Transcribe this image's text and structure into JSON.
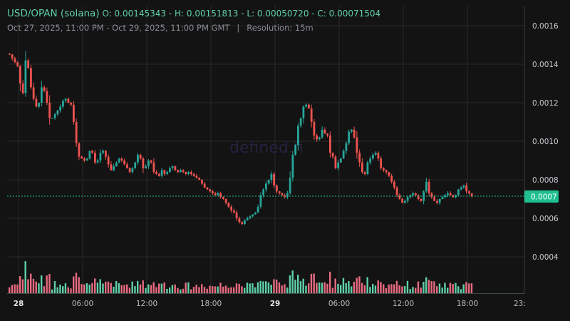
{
  "header": {
    "symbol": "USD/OPAN (solana)",
    "ohlc": "O: 0.00145343 - H: 0.00151813 - L: 0.00050720 - C: 0.00071504",
    "range": "Oct 27, 2025, 11:00 PM - Oct 29, 2025, 11:00 PM GMT",
    "separator": "|",
    "resolution": "Resolution: 15m"
  },
  "watermark": "defined.fi",
  "colors": {
    "background": "#131313",
    "up": "#26a69a",
    "down": "#ef5350",
    "volume_up": "#5fd0a8",
    "volume_down": "#e86b80",
    "grid": "#2a2a2a",
    "price_line": "#1fbf90",
    "price_tag": "#1fbf90"
  },
  "price_tag": "0.0007",
  "chart_data": {
    "type": "candlestick",
    "title": "USD/OPAN (solana)",
    "resolution": "15m",
    "open": 0.00145343,
    "high": 0.00151813,
    "low": 0.0005072,
    "close": 0.00071504,
    "y_ticks": [
      "0.0016",
      "0.0014",
      "0.0012",
      "0.0010",
      "0.0008",
      "0.0006",
      "0.0004"
    ],
    "x_ticks": [
      {
        "label": "28",
        "bold": true
      },
      {
        "label": "06:00",
        "bold": false
      },
      {
        "label": "12:00",
        "bold": false
      },
      {
        "label": "18:00",
        "bold": false
      },
      {
        "label": "29",
        "bold": true
      },
      {
        "label": "06:00",
        "bold": false
      },
      {
        "label": "12:00",
        "bold": false
      },
      {
        "label": "18:00",
        "bold": false
      },
      {
        "label": "23:",
        "bold": false
      }
    ],
    "ylim": [
      0.0003,
      0.00165
    ],
    "current_price": 0.00071504,
    "close_series_approx": [
      0.00145,
      0.00143,
      0.00141,
      0.00139,
      0.0013,
      0.00125,
      0.00142,
      0.00138,
      0.00128,
      0.00122,
      0.00118,
      0.0012,
      0.00128,
      0.00126,
      0.0012,
      0.00112,
      0.00112,
      0.00114,
      0.00116,
      0.00118,
      0.00121,
      0.00122,
      0.0012,
      0.00119,
      0.0011,
      0.00099,
      0.00092,
      0.00091,
      0.0009,
      0.00091,
      0.00095,
      0.00094,
      0.00089,
      0.0009,
      0.00094,
      0.00095,
      0.00092,
      0.00088,
      0.00085,
      0.00087,
      0.00089,
      0.00091,
      0.0009,
      0.00088,
      0.00086,
      0.00084,
      0.00086,
      0.00089,
      0.00093,
      0.00091,
      0.00086,
      0.00087,
      0.0009,
      0.00089,
      0.00084,
      0.00083,
      0.00082,
      0.00085,
      0.00083,
      0.00084,
      0.00086,
      0.00087,
      0.00085,
      0.00084,
      0.00085,
      0.00084,
      0.00083,
      0.00084,
      0.00083,
      0.00082,
      0.00081,
      0.0008,
      0.00078,
      0.00076,
      0.00075,
      0.00074,
      0.00073,
      0.00072,
      0.00073,
      0.00071,
      0.0007,
      0.00068,
      0.00066,
      0.00064,
      0.00063,
      0.0006,
      0.00058,
      0.00057,
      0.00059,
      0.0006,
      0.00061,
      0.00062,
      0.00063,
      0.00066,
      0.00072,
      0.00075,
      0.00078,
      0.0008,
      0.00083,
      0.00077,
      0.00074,
      0.00073,
      0.00072,
      0.00071,
      0.00073,
      0.00081,
      0.00093,
      0.00098,
      0.00108,
      0.00112,
      0.00118,
      0.00119,
      0.00117,
      0.0011,
      0.00103,
      0.00101,
      0.00102,
      0.00106,
      0.00104,
      0.00103,
      0.00094,
      0.00092,
      0.00086,
      0.00089,
      0.00091,
      0.00095,
      0.00099,
      0.00105,
      0.00106,
      0.00102,
      0.00094,
      0.00089,
      0.00084,
      0.00083,
      0.00089,
      0.00091,
      0.00093,
      0.00094,
      0.00091,
      0.00086,
      0.00085,
      0.00084,
      0.00082,
      0.00079,
      0.00076,
      0.00072,
      0.0007,
      0.00068,
      0.00069,
      0.00071,
      0.00072,
      0.00073,
      0.00072,
      0.0007,
      0.00069,
      0.00074,
      0.00079,
      0.00073,
      0.00071,
      0.00069,
      0.00068,
      0.0007,
      0.00071,
      0.00072,
      0.00073,
      0.00072,
      0.00071,
      0.00072,
      0.00075,
      0.00076,
      0.00077,
      0.00074,
      0.00073,
      0.00071504
    ]
  }
}
